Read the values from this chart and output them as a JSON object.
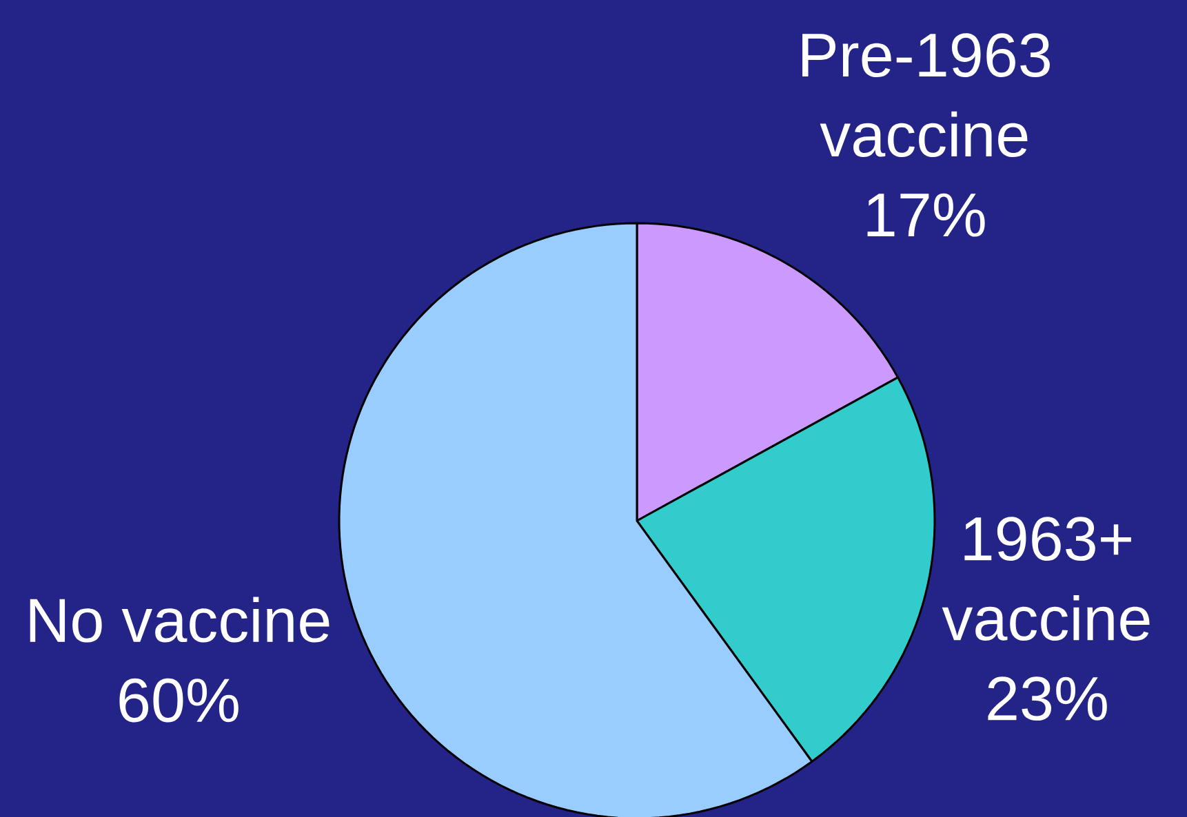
{
  "chart_data": {
    "type": "pie",
    "categories": [
      "Pre-1963 vaccine",
      "1963+ vaccine",
      "No vaccine"
    ],
    "values": [
      17,
      23,
      60
    ],
    "value_labels": [
      "17%",
      "23%",
      "60%"
    ],
    "colors": [
      "#cc99ff",
      "#33cccc",
      "#99ccff"
    ]
  }
}
